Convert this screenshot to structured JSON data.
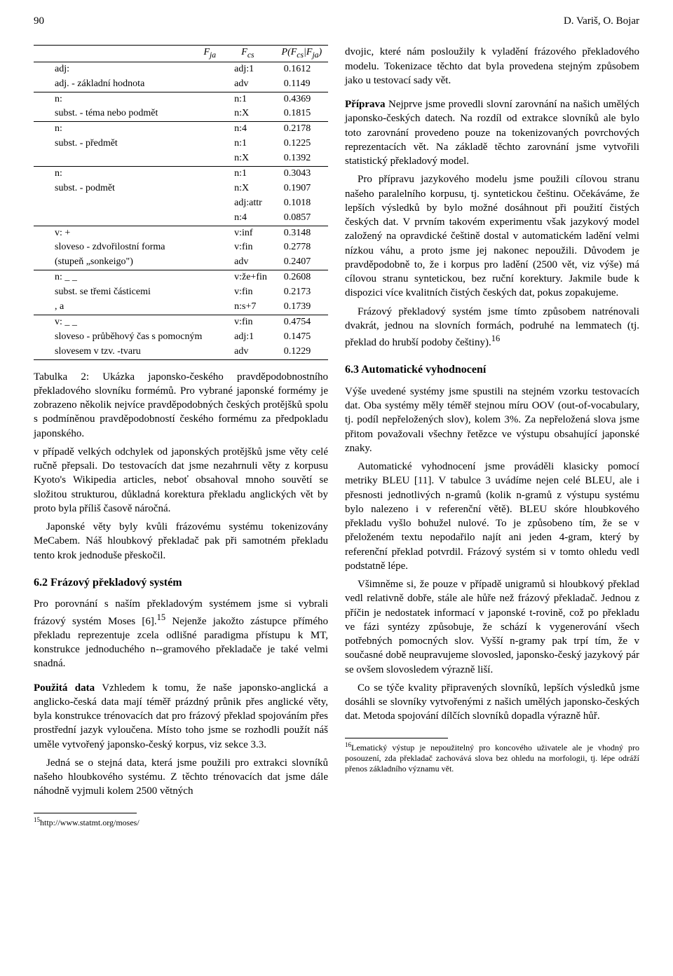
{
  "header": {
    "page_number": "90",
    "authors": "D. Variš, O. Bojar"
  },
  "table": {
    "type": "table",
    "columns": [
      "F_ja",
      "F_cs",
      "P(F_cs|F_ja)"
    ],
    "groups": [
      {
        "rows": [
          {
            "fja": "adj:",
            "fcs": "adj:1",
            "p": "0.1612"
          },
          {
            "fja": "adj. - základní hodnota",
            "fcs": "adv",
            "p": "0.1149"
          }
        ]
      },
      {
        "rows": [
          {
            "fja": "n:",
            "fcs": "n:1",
            "p": "0.4369"
          },
          {
            "fja": "subst. - téma nebo podmět",
            "fcs": "n:X",
            "p": "0.1815"
          }
        ]
      },
      {
        "rows": [
          {
            "fja": "n:",
            "fcs": "n:4",
            "p": "0.2178"
          },
          {
            "fja": "subst. - předmět",
            "fcs": "n:1",
            "p": "0.1225"
          },
          {
            "fja": "",
            "fcs": "n:X",
            "p": "0.1392"
          }
        ]
      },
      {
        "rows": [
          {
            "fja": "n:",
            "fcs": "n:1",
            "p": "0.3043"
          },
          {
            "fja": "subst. - podmět",
            "fcs": "n:X",
            "p": "0.1907"
          },
          {
            "fja": "",
            "fcs": "adj:attr",
            "p": "0.1018"
          },
          {
            "fja": "",
            "fcs": "n:4",
            "p": "0.0857"
          }
        ]
      },
      {
        "rows": [
          {
            "fja": "v:   +",
            "fcs": "v:inf",
            "p": "0.3148"
          },
          {
            "fja": "sloveso - zdvořilostní forma",
            "fcs": "v:fin",
            "p": "0.2778"
          },
          {
            "fja": "(stupeň „sonkeigo\")",
            "fcs": "adv",
            "p": "0.2407"
          }
        ]
      },
      {
        "rows": [
          {
            "fja": "n:  _   _",
            "fcs": "v:že+fin",
            "p": "0.2608"
          },
          {
            "fja": "subst. se třemi částicemi",
            "fcs": "v:fin",
            "p": "0.2173"
          },
          {
            "fja": ",      a",
            "fcs": "n:s+7",
            "p": "0.1739"
          }
        ]
      },
      {
        "rows": [
          {
            "fja": "v:  _       _",
            "fcs": "v:fin",
            "p": "0.4754"
          },
          {
            "fja": "sloveso - průběhový čas s pomocným",
            "fcs": "adj:1",
            "p": "0.1475"
          },
          {
            "fja": "slovesem v tzv.      -tvaru",
            "fcs": "adv",
            "p": "0.1229"
          }
        ]
      }
    ]
  },
  "caption": "Tabulka 2: Ukázka japonsko-českého pravděpodobnostního překladového slovníku formémů. Pro vybrané japonské formémy je zobrazeno několik nejvíce pravděpodobných českých protějšků spolu s podmíněnou pravděpodobností českého formému za předpokladu japonského.",
  "left": {
    "p1": "v případě velkých odchylek od japonských protějšků jsme věty celé ručně přepsali. Do testovacích dat jsme nezahrnuli věty z korpusu Kyoto's Wikipedia articles, neboť obsahoval mnoho souvětí se složitou strukturou, důkladná korektura překladu anglických vět by proto byla příliš časově náročná.",
    "p2": "Japonské věty byly kvůli frázovému systému tokenizovány MeCabem. Náš hloubkový překladač pak při samotném překladu tento krok jednoduše přeskočil.",
    "h62": "6.2   Frázový překladový systém",
    "p3a": "Pro porovnání s naším překladovým systémem jsme si vybrali frázový systém Moses [6].",
    "p3b": " Nejenže jakožto zástupce přímého překladu reprezentuje zcela odlišné paradigma přístupu k MT, konstrukce jednoduchého n-‑gramového překladače je také velmi snadná.",
    "p4_label": "Použitá data",
    "p4": "  Vzhledem k tomu, že naše japonsko-anglická a anglicko-česká data mají téměř prázdný průnik přes anglické věty, byla konstrukce trénovacích dat pro frázový překlad spojováním přes prostřední jazyk vyloučena. Místo toho jsme se rozhodli použít náš uměle vytvořený japonsko-český korpus, viz sekce 3.3.",
    "p5": "Jedná se o stejná data, která jsme použili pro extrakci slovníků našeho hloubkového systému. Z těchto trénovacích dat jsme dále náhodně vyjmuli kolem 2500 větných",
    "fn15": "http://www.statmt.org/moses/"
  },
  "right": {
    "p1": "dvojic, které nám posloužily k vyladění frázového překladového modelu. Tokenizace těchto dat byla provedena stejným způsobem jako u testovací sady vět.",
    "p2_label": "Příprava",
    "p2": "  Nejprve jsme provedli slovní zarovnání na našich umělých japonsko-českých datech. Na rozdíl od extrakce slovníků ale bylo toto zarovnání provedeno pouze na tokenizovaných povrchových reprezentacích vět. Na základě těchto zarovnání jsme vytvořili statistický překladový model.",
    "p3": "Pro přípravu jazykového modelu jsme použili cílovou stranu našeho paralelního korpusu, tj. syntetickou češtinu. Očekáváme, že lepších výsledků by bylo možné dosáhnout při použití čistých českých dat. V prvním takovém experimentu však jazykový model založený na opravdické češtině dostal v automatickém ladění velmi nízkou váhu, a proto jsme jej nakonec nepoužili. Důvodem je pravděpodobně to, že i korpus pro ladění (2500 vět, viz výše) má cílovou stranu syntetickou, bez ruční korektury. Jakmile bude k dispozici více kvalitních čistých českých dat, pokus zopakujeme.",
    "p4a": "Frázový překladový systém jsme tímto způsobem natrénovali dvakrát, jednou na slovních formách, podruhé na lemmatech (tj. překlad do hrubší podoby češtiny).",
    "h63": "6.3   Automatické vyhodnocení",
    "p5": "Výše uvedené systémy jsme spustili na stejném vzorku testovacích dat. Oba systémy měly téměř stejnou míru OOV (out-of-vocabulary, tj. podíl nepřeložených slov), kolem 3%. Za nepřeložená slova jsme přitom považovali všechny řetězce ve výstupu obsahující japonské znaky.",
    "p6": "Automatické vyhodnocení jsme prováděli klasicky pomocí metriky BLEU [11]. V tabulce 3 uvádíme nejen celé BLEU, ale i přesnosti jednotlivých n-gramů (kolik n-gramů z výstupu systému bylo nalezeno i v referenční větě). BLEU skóre hloubkového překladu vyšlo bohužel nulové. To je způsobeno tím, že se v přeloženém textu nepodařilo najít ani jeden 4-gram, který by referenční překlad potvrdil. Frázový systém si v tomto ohledu vedl podstatně lépe.",
    "p7": "Všimněme si, že pouze v případě unigramů si hloubkový překlad vedl relativně dobře, stále ale hůře než frázový překladač. Jednou z příčin je nedostatek informací v japonské t-rovině, což po překladu ve fázi syntézy způsobuje, že schází k vygenerování všech potřebných pomocných slov. Vyšší n-gramy pak trpí tím, že v současné době neupravujeme slovosled, japonsko-český jazykový pár se ovšem slovosledem výrazně liší.",
    "p8": "Co se týče kvality připravených slovníků, lepších výsledků jsme dosáhli se slovníky vytvořenými z našich umělých japonsko-českých dat. Metoda spojování dílčích slovníků dopadla výrazně hůř.",
    "fn16": "Lematický výstup je nepoužitelný pro koncového uživatele ale je vhodný pro posouzení, zda překladač zachovává slova bez ohledu na morfologii, tj. lépe odráží přenos základního významu vět."
  }
}
